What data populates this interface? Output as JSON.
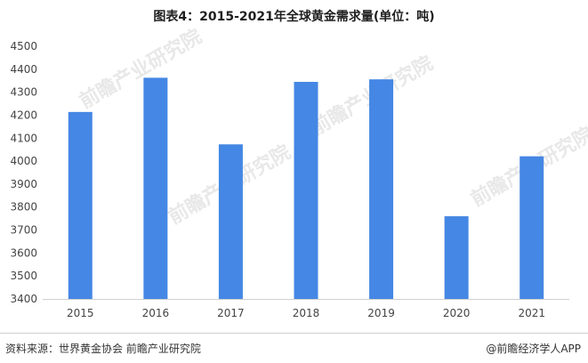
{
  "page_title": "图表4：2015-2021年全球黄金需求量(单位：吨)",
  "watermark": "前瞻产业研究院",
  "footer": {
    "source": "资料来源：世界黄金协会 前瞻产业研究院",
    "brand": "@前瞻经济学人APP"
  },
  "colors": {
    "bar": "#4587e4",
    "axis": "#d0d0d0"
  },
  "chart_data": {
    "type": "bar",
    "title": "图表4：2015-2021年全球黄金需求量(单位：吨)",
    "categories": [
      "2015",
      "2016",
      "2017",
      "2018",
      "2019",
      "2020",
      "2021"
    ],
    "values": [
      4214,
      4363,
      4073,
      4345,
      4356,
      3760,
      4021
    ],
    "ylim": [
      3400,
      4500
    ],
    "yticks": [
      3400,
      3500,
      3600,
      3700,
      3800,
      3900,
      4000,
      4100,
      4200,
      4300,
      4400,
      4500
    ],
    "xlabel": "",
    "ylabel": "",
    "grid": false,
    "legend": "none"
  }
}
